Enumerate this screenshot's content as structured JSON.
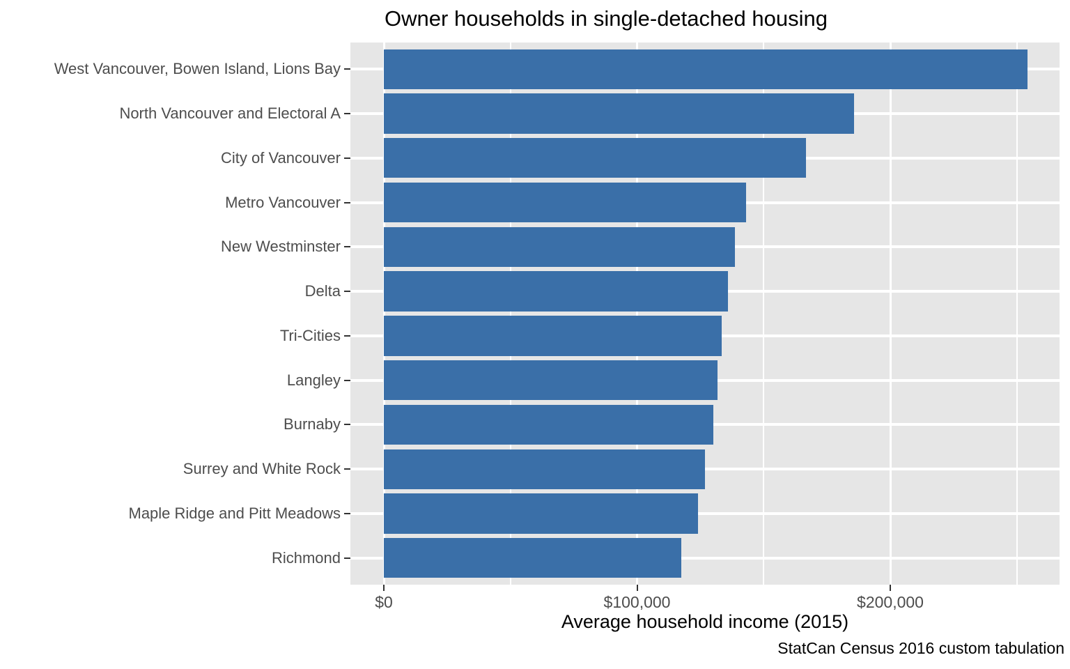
{
  "chart_data": {
    "type": "bar",
    "orientation": "horizontal",
    "title": "Owner households in single-detached housing",
    "xlabel": "Average household income (2015)",
    "caption": "StatCan Census 2016 custom tabulation",
    "categories": [
      "West Vancouver, Bowen Island, Lions Bay",
      "North Vancouver and Electoral A",
      "City of Vancouver",
      "Metro Vancouver",
      "New Westminster",
      "Delta",
      "Tri-Cities",
      "Langley",
      "Burnaby",
      "Surrey and White Rock",
      "Maple Ridge and Pitt Meadows",
      "Richmond"
    ],
    "values": [
      254200,
      185800,
      166800,
      143000,
      138700,
      135800,
      133300,
      131700,
      130200,
      126900,
      124100,
      117500
    ],
    "x_ticks": [
      {
        "value": 0,
        "label": "$0"
      },
      {
        "value": 100000,
        "label": "$100,000"
      },
      {
        "value": 200000,
        "label": "$200,000"
      }
    ],
    "x_minor_ticks": [
      50000,
      150000,
      250000
    ],
    "xlim": [
      0,
      266850
    ],
    "grid": "on",
    "legend": "none",
    "colors": {
      "bar": "#3A6FA8",
      "panel_bg": "#E6E6E6",
      "grid": "#FFFFFF",
      "axis_text": "#4D4D4D",
      "tick_mark": "#333333",
      "text": "#000000"
    }
  }
}
